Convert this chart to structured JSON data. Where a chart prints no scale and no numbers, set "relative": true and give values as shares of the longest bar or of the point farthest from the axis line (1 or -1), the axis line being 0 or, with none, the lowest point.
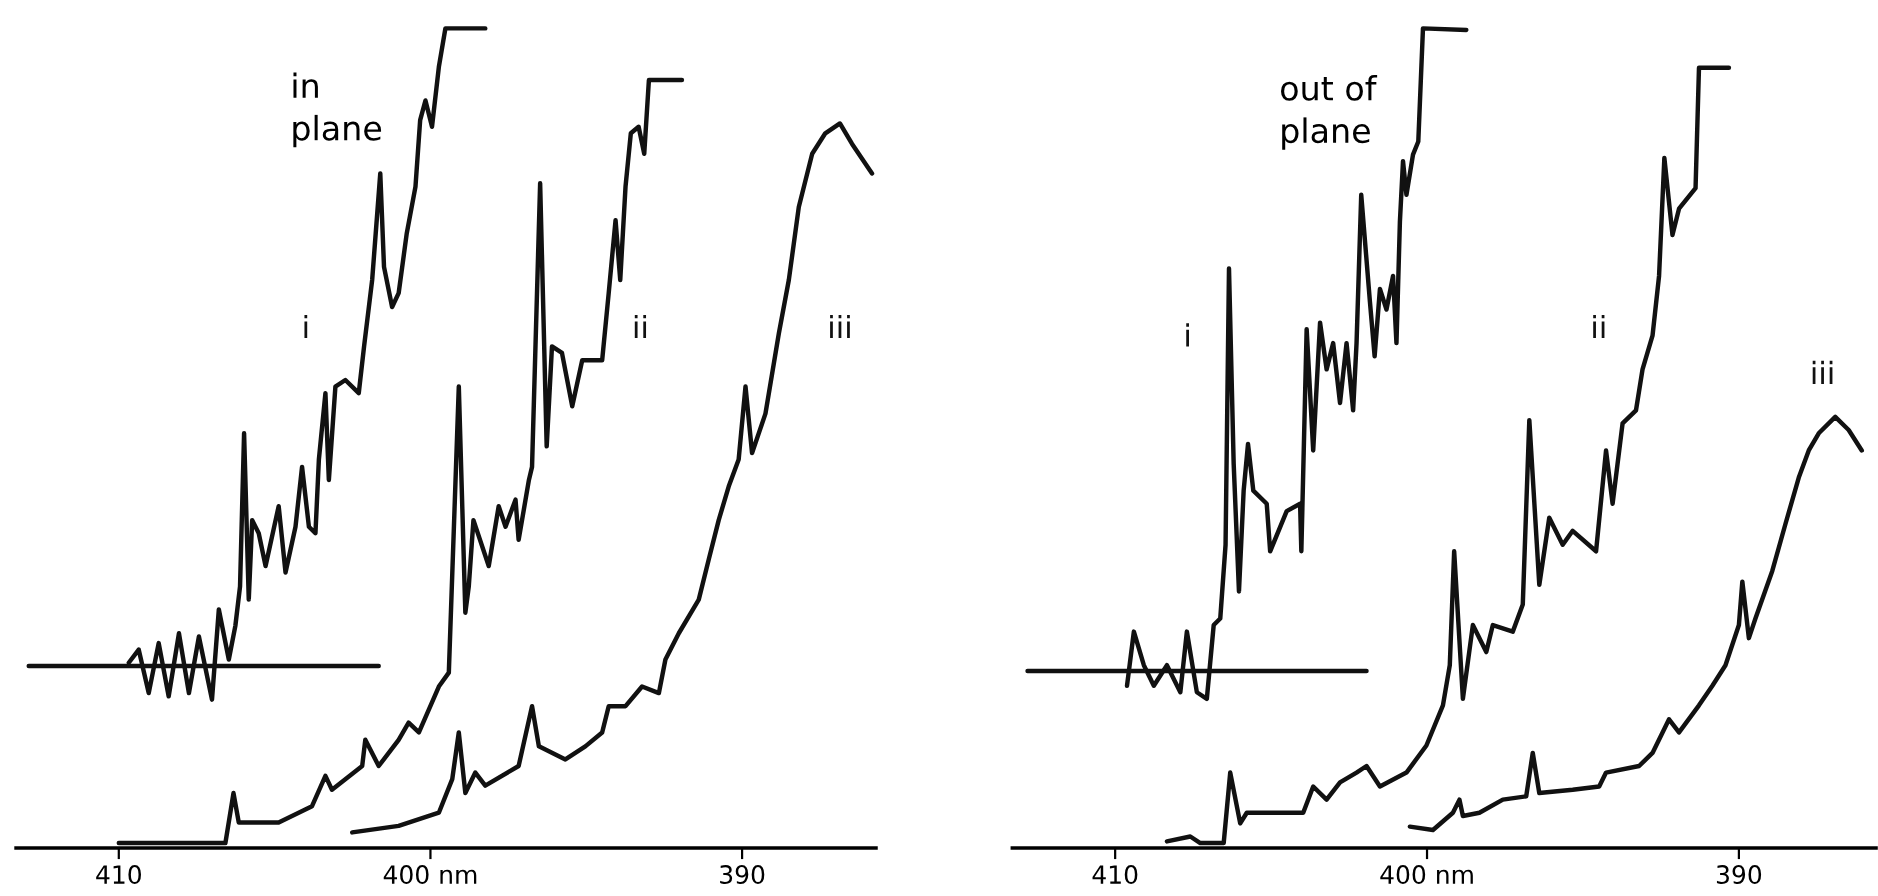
{
  "chart_data": [
    {
      "type": "line",
      "title": "in plane",
      "relative": true,
      "tick_labels": "x",
      "grid": false,
      "legend": false,
      "xlim": [
        413.3,
        385.7
      ],
      "xticks": [
        410,
        {
          "value": 400,
          "label": "400 nm"
        },
        390
      ],
      "series": [
        {
          "name": "i",
          "color": "#111111",
          "x": [
            409.68,
            409.36,
            409.04,
            408.72,
            408.4,
            408.07,
            407.75,
            407.43,
            407.01,
            406.79,
            406.47,
            406.26,
            406.11,
            405.98,
            405.83,
            405.72,
            405.51,
            405.29,
            404.87,
            404.65,
            404.33,
            404.12,
            403.9,
            403.69,
            403.58,
            403.37,
            403.26,
            403.05,
            402.73,
            402.3,
            402.13,
            401.87,
            401.61,
            401.49,
            401.23,
            401.02,
            400.76,
            400.48,
            400.33,
            400.16,
            399.95,
            399.73,
            399.52,
            398.24
          ],
          "values": [
            0.226,
            0.242,
            0.189,
            0.25,
            0.185,
            0.262,
            0.189,
            0.258,
            0.181,
            0.291,
            0.23,
            0.271,
            0.319,
            0.506,
            0.303,
            0.4,
            0.384,
            0.344,
            0.417,
            0.336,
            0.392,
            0.465,
            0.392,
            0.384,
            0.474,
            0.555,
            0.449,
            0.563,
            0.571,
            0.555,
            0.612,
            0.693,
            0.823,
            0.709,
            0.66,
            0.677,
            0.75,
            0.807,
            0.888,
            0.912,
            0.88,
            0.953,
            1.0,
            1.0
          ]
        },
        {
          "color": "#111111",
          "x": [
            412.89,
            401.66
          ],
          "values": [
            0.222,
            0.222
          ]
        },
        {
          "name": "ii",
          "color": "#111111",
          "x": [
            410.0,
            406.58,
            406.32,
            406.15,
            404.87,
            403.8,
            403.37,
            403.16,
            402.19,
            402.09,
            401.66,
            401.02,
            400.7,
            400.37,
            399.73,
            399.41,
            399.09,
            398.88,
            398.77,
            398.62,
            398.13,
            397.81,
            397.59,
            397.27,
            397.17,
            396.84,
            396.74,
            396.48,
            396.27,
            396.1,
            395.78,
            395.45,
            395.13,
            394.49,
            394.28,
            394.06,
            393.91,
            393.74,
            393.57,
            393.32,
            393.14,
            392.99,
            391.93
          ],
          "values": [
            0.006,
            0.006,
            0.067,
            0.031,
            0.031,
            0.051,
            0.088,
            0.071,
            0.1,
            0.132,
            0.1,
            0.132,
            0.153,
            0.141,
            0.197,
            0.214,
            0.563,
            0.287,
            0.319,
            0.4,
            0.344,
            0.417,
            0.392,
            0.425,
            0.376,
            0.449,
            0.465,
            0.811,
            0.49,
            0.612,
            0.604,
            0.539,
            0.595,
            0.595,
            0.677,
            0.766,
            0.693,
            0.807,
            0.872,
            0.88,
            0.847,
            0.937,
            0.937
          ]
        },
        {
          "name": "iii",
          "color": "#111111",
          "x": [
            402.51,
            401.02,
            399.73,
            399.3,
            399.09,
            398.88,
            398.56,
            398.24,
            397.17,
            396.74,
            396.52,
            395.67,
            395.03,
            394.49,
            394.28,
            393.74,
            393.21,
            392.67,
            392.46,
            392.03,
            391.39,
            391.07,
            390.75,
            390.43,
            390.11,
            389.89,
            389.68,
            389.25,
            388.82,
            388.5,
            388.18,
            387.75,
            387.33,
            386.86,
            386.47,
            385.83
          ],
          "values": [
            0.019,
            0.027,
            0.043,
            0.084,
            0.141,
            0.067,
            0.092,
            0.076,
            0.1,
            0.173,
            0.124,
            0.108,
            0.124,
            0.141,
            0.173,
            0.173,
            0.197,
            0.189,
            0.23,
            0.262,
            0.303,
            0.352,
            0.4,
            0.441,
            0.474,
            0.563,
            0.482,
            0.53,
            0.628,
            0.693,
            0.782,
            0.847,
            0.872,
            0.884,
            0.859,
            0.823
          ]
        }
      ]
    },
    {
      "type": "line",
      "title": "out of plane",
      "relative": true,
      "tick_labels": "x",
      "grid": false,
      "legend": false,
      "xlim": [
        413.3,
        385.6
      ],
      "xticks": [
        410,
        {
          "value": 400,
          "label": "400 nm"
        },
        390
      ],
      "series": [
        {
          "name": "i",
          "color": "#111111",
          "x": [
            409.62,
            409.4,
            409.08,
            408.76,
            408.34,
            407.91,
            407.7,
            407.38,
            407.06,
            406.84,
            406.63,
            406.46,
            406.35,
            406.2,
            406.03,
            405.88,
            405.74,
            405.57,
            405.14,
            405.03,
            404.5,
            404.07,
            404.03,
            403.86,
            403.65,
            403.43,
            403.22,
            403.01,
            402.79,
            402.58,
            402.37,
            402.26,
            402.11,
            401.83,
            401.68,
            401.51,
            401.3,
            401.09,
            400.98,
            400.87,
            400.77,
            400.66,
            400.45,
            400.28,
            400.13,
            398.74
          ],
          "values": [
            0.198,
            0.264,
            0.223,
            0.198,
            0.223,
            0.19,
            0.264,
            0.19,
            0.182,
            0.272,
            0.28,
            0.37,
            0.707,
            0.469,
            0.313,
            0.436,
            0.493,
            0.436,
            0.42,
            0.362,
            0.411,
            0.42,
            0.362,
            0.633,
            0.485,
            0.641,
            0.584,
            0.616,
            0.543,
            0.616,
            0.534,
            0.616,
            0.797,
            0.666,
            0.6,
            0.682,
            0.657,
            0.698,
            0.616,
            0.764,
            0.838,
            0.797,
            0.846,
            0.862,
            1.0,
            0.998
          ]
        },
        {
          "color": "#111111",
          "x": [
            412.81,
            401.94
          ],
          "values": [
            0.216,
            0.216
          ]
        },
        {
          "name": "ii",
          "color": "#111111",
          "x": [
            408.34,
            407.59,
            407.27,
            406.52,
            406.31,
            405.99,
            405.78,
            403.97,
            403.65,
            403.22,
            402.79,
            402.26,
            401.94,
            401.51,
            400.66,
            400.02,
            399.49,
            399.27,
            399.13,
            398.85,
            398.53,
            398.1,
            397.89,
            397.25,
            396.93,
            396.72,
            396.4,
            396.08,
            395.65,
            395.33,
            394.58,
            394.26,
            394.05,
            393.73,
            393.3,
            393.09,
            392.77,
            392.56,
            392.39,
            392.13,
            391.92,
            391.39,
            391.28,
            390.32
          ],
          "values": [
            0.008,
            0.014,
            0.006,
            0.006,
            0.092,
            0.03,
            0.043,
            0.043,
            0.075,
            0.059,
            0.08,
            0.092,
            0.1,
            0.075,
            0.092,
            0.125,
            0.174,
            0.223,
            0.362,
            0.182,
            0.272,
            0.239,
            0.272,
            0.264,
            0.297,
            0.522,
            0.321,
            0.403,
            0.37,
            0.387,
            0.362,
            0.485,
            0.42,
            0.518,
            0.534,
            0.584,
            0.625,
            0.698,
            0.842,
            0.748,
            0.78,
            0.805,
            0.952,
            0.952
          ]
        },
        {
          "name": "iii",
          "color": "#111111",
          "x": [
            400.55,
            399.81,
            399.17,
            398.96,
            398.85,
            398.32,
            397.57,
            396.82,
            396.61,
            396.4,
            395.33,
            394.48,
            394.26,
            393.2,
            392.77,
            392.24,
            391.92,
            391.28,
            390.85,
            390.43,
            390.0,
            389.89,
            389.68,
            389.47,
            388.93,
            388.51,
            388.08,
            387.76,
            387.44,
            386.91,
            386.48,
            386.06
          ],
          "values": [
            0.026,
            0.022,
            0.043,
            0.059,
            0.039,
            0.043,
            0.059,
            0.063,
            0.116,
            0.067,
            0.071,
            0.075,
            0.092,
            0.1,
            0.116,
            0.157,
            0.141,
            0.174,
            0.198,
            0.223,
            0.272,
            0.325,
            0.256,
            0.28,
            0.338,
            0.395,
            0.452,
            0.485,
            0.506,
            0.526,
            0.51,
            0.485
          ]
        }
      ]
    }
  ]
}
